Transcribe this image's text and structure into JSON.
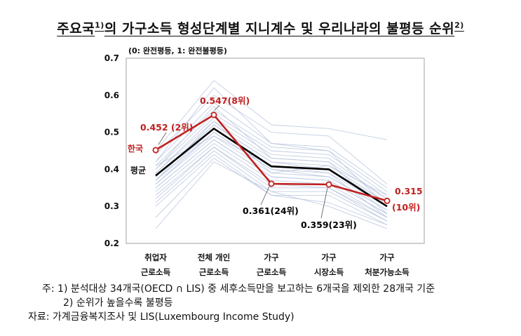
{
  "title": {
    "main": "주요국",
    "sup1": "1)",
    "rest": "의 가구소득 형성단계별 지니계수 및 우리나라의 불평등 순위",
    "sup2": "2)"
  },
  "scale_note": "(0: 완전평등, 1: 완전불평등)",
  "notes": {
    "note1": "주: 1) 분석대상 34개국(OECD ∩ LIS) 중 세후소득만을 보고하는 6개국을 제외한 28개국 기준",
    "note2": "2) 순위가 높을수록 불평등",
    "source": "자료: 가계금융복지조사 및 LIS(Luxembourg Income Study)"
  },
  "chart_data": {
    "type": "line",
    "categories": [
      [
        "취업자",
        "근로소득"
      ],
      [
        "전체 개인",
        "근로소득"
      ],
      [
        "가구",
        "근로소득"
      ],
      [
        "가구",
        "시장소득"
      ],
      [
        "가구",
        "처분가능소득"
      ]
    ],
    "ylim": [
      0.2,
      0.7
    ],
    "yticks": [
      "0.2",
      "0.3",
      "0.4",
      "0.5",
      "0.6",
      "0.7"
    ],
    "series": [
      {
        "name": "한국",
        "values": [
          0.452,
          0.547,
          0.361,
          0.359,
          0.315
        ],
        "color": "#c0201e"
      },
      {
        "name": "평균",
        "values": [
          0.383,
          0.51,
          0.408,
          0.4,
          0.3
        ],
        "color": "#000000"
      }
    ],
    "data_labels": [
      {
        "text": "0.452 (2위)",
        "color": "#c0201e"
      },
      {
        "text": "0.547(8위)",
        "color": "#c0201e"
      },
      {
        "text": "0.361(24위)",
        "color": "#000000"
      },
      {
        "text": "0.359(23위)",
        "color": "#000000"
      },
      {
        "text": "0.315",
        "color": "#c0201e"
      },
      {
        "text": "(10위)",
        "color": "#c0201e"
      }
    ],
    "background_series": [
      [
        0.45,
        0.64,
        0.52,
        0.51,
        0.48
      ],
      [
        0.44,
        0.6,
        0.5,
        0.49,
        0.36
      ],
      [
        0.42,
        0.58,
        0.47,
        0.46,
        0.35
      ],
      [
        0.41,
        0.56,
        0.46,
        0.45,
        0.34
      ],
      [
        0.4,
        0.55,
        0.45,
        0.44,
        0.33
      ],
      [
        0.39,
        0.54,
        0.44,
        0.43,
        0.32
      ],
      [
        0.39,
        0.53,
        0.43,
        0.42,
        0.32
      ],
      [
        0.38,
        0.52,
        0.42,
        0.41,
        0.31
      ],
      [
        0.38,
        0.52,
        0.42,
        0.4,
        0.31
      ],
      [
        0.37,
        0.51,
        0.41,
        0.4,
        0.3
      ],
      [
        0.37,
        0.5,
        0.4,
        0.39,
        0.3
      ],
      [
        0.36,
        0.5,
        0.4,
        0.38,
        0.29
      ],
      [
        0.36,
        0.49,
        0.39,
        0.38,
        0.29
      ],
      [
        0.35,
        0.48,
        0.38,
        0.37,
        0.28
      ],
      [
        0.35,
        0.48,
        0.38,
        0.37,
        0.28
      ],
      [
        0.34,
        0.47,
        0.37,
        0.36,
        0.27
      ],
      [
        0.33,
        0.46,
        0.36,
        0.35,
        0.27
      ],
      [
        0.32,
        0.46,
        0.35,
        0.35,
        0.26
      ],
      [
        0.31,
        0.45,
        0.34,
        0.34,
        0.26
      ],
      [
        0.3,
        0.44,
        0.33,
        0.33,
        0.25
      ],
      [
        0.27,
        0.43,
        0.33,
        0.31,
        0.25
      ],
      [
        0.24,
        0.42,
        0.34,
        0.3,
        0.24
      ],
      [
        0.42,
        0.62,
        0.47,
        0.45,
        0.3
      ],
      [
        0.4,
        0.57,
        0.43,
        0.42,
        0.28
      ],
      [
        0.37,
        0.53,
        0.39,
        0.41,
        0.33
      ],
      [
        0.41,
        0.49,
        0.41,
        0.39,
        0.27
      ]
    ],
    "background_color": "#b8c6de"
  }
}
